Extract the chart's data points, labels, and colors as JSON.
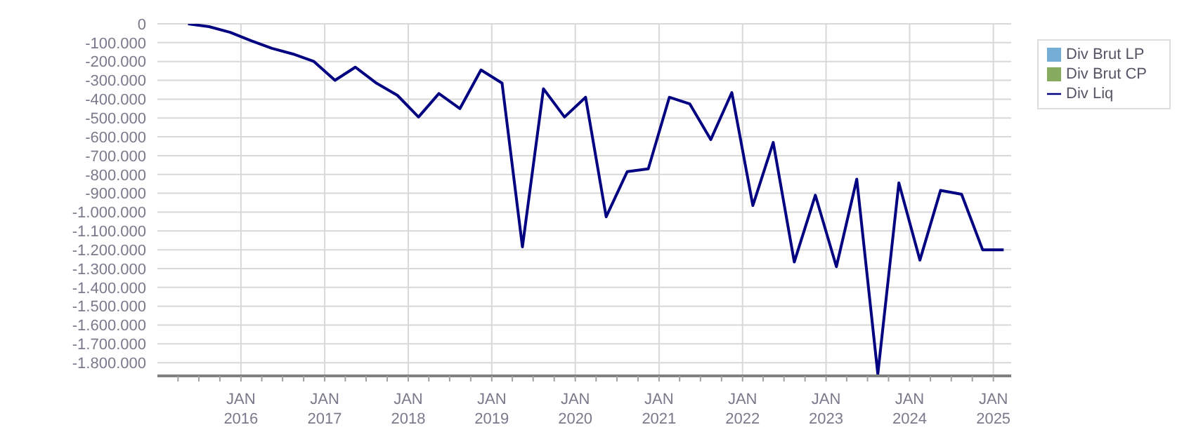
{
  "chart_data": {
    "type": "line",
    "x": [
      "2015-05-15",
      "2015-08-15",
      "2015-11-15",
      "2016-02-15",
      "2016-05-15",
      "2016-08-15",
      "2016-11-15",
      "2017-02-15",
      "2017-05-15",
      "2017-08-15",
      "2017-11-15",
      "2018-02-15",
      "2018-05-15",
      "2018-08-15",
      "2018-11-15",
      "2019-02-15",
      "2019-05-15",
      "2019-08-15",
      "2019-11-15",
      "2020-02-15",
      "2020-05-15",
      "2020-08-15",
      "2020-11-15",
      "2021-02-15",
      "2021-05-15",
      "2021-08-15",
      "2021-11-15",
      "2022-02-15",
      "2022-05-15",
      "2022-08-15",
      "2022-11-15",
      "2023-02-15",
      "2023-05-15",
      "2023-08-15",
      "2023-11-15",
      "2024-02-15",
      "2024-05-15",
      "2024-08-15",
      "2024-11-15",
      "2025-02-15"
    ],
    "series": [
      {
        "name": "Div Brut LP",
        "type": "bar",
        "color": "#74aed6",
        "values": [
          null,
          null,
          null,
          null,
          null,
          null,
          null,
          null,
          null,
          null,
          null,
          null,
          null,
          null,
          null,
          null,
          null,
          null,
          null,
          null,
          null,
          null,
          null,
          null,
          null,
          null,
          null,
          null,
          null,
          null,
          null,
          null,
          null,
          null,
          null,
          null,
          null,
          null,
          null,
          null
        ]
      },
      {
        "name": "Div Brut CP",
        "type": "bar",
        "color": "#86ab5e",
        "values": [
          null,
          null,
          null,
          null,
          null,
          null,
          null,
          null,
          null,
          null,
          null,
          null,
          null,
          null,
          null,
          null,
          null,
          null,
          null,
          null,
          null,
          null,
          null,
          null,
          null,
          null,
          null,
          null,
          null,
          null,
          null,
          null,
          null,
          null,
          null,
          null,
          null,
          null,
          null,
          null
        ]
      },
      {
        "name": "Div Liq",
        "color": "#000080",
        "values": [
          0,
          -15000,
          -45000,
          -90000,
          -130000,
          -160000,
          -200000,
          -300000,
          -230000,
          -315000,
          -380000,
          -495000,
          -370000,
          -450000,
          -245000,
          -315000,
          -1185000,
          -345000,
          -495000,
          -390000,
          -1025000,
          -785000,
          -770000,
          -390000,
          -425000,
          -615000,
          -365000,
          -965000,
          -630000,
          -1265000,
          -910000,
          -1290000,
          -825000,
          -1860000,
          -845000,
          -1255000,
          -885000,
          -905000,
          -1200000,
          -1200000
        ]
      }
    ],
    "xlim": [
      "2015-01-01",
      "2025-03-20"
    ],
    "xticks": [
      {
        "value": "2015-04-01",
        "label": null
      },
      {
        "value": "2015-07-01",
        "label": null
      },
      {
        "value": "2015-10-01",
        "label": null
      },
      {
        "value": "2016-01-01",
        "label": "JAN\n2016"
      },
      {
        "value": "2016-04-01",
        "label": null
      },
      {
        "value": "2016-07-01",
        "label": null
      },
      {
        "value": "2016-10-01",
        "label": null
      },
      {
        "value": "2017-01-01",
        "label": "JAN\n2017"
      },
      {
        "value": "2017-04-01",
        "label": null
      },
      {
        "value": "2017-07-01",
        "label": null
      },
      {
        "value": "2017-10-01",
        "label": null
      },
      {
        "value": "2018-01-01",
        "label": "JAN\n2018"
      },
      {
        "value": "2018-04-01",
        "label": null
      },
      {
        "value": "2018-07-01",
        "label": null
      },
      {
        "value": "2018-10-01",
        "label": null
      },
      {
        "value": "2019-01-01",
        "label": "JAN\n2019"
      },
      {
        "value": "2019-04-01",
        "label": null
      },
      {
        "value": "2019-07-01",
        "label": null
      },
      {
        "value": "2019-10-01",
        "label": null
      },
      {
        "value": "2020-01-01",
        "label": "JAN\n2020"
      },
      {
        "value": "2020-04-01",
        "label": null
      },
      {
        "value": "2020-07-01",
        "label": null
      },
      {
        "value": "2020-10-01",
        "label": null
      },
      {
        "value": "2021-01-01",
        "label": "JAN\n2021"
      },
      {
        "value": "2021-04-01",
        "label": null
      },
      {
        "value": "2021-07-01",
        "label": null
      },
      {
        "value": "2021-10-01",
        "label": null
      },
      {
        "value": "2022-01-01",
        "label": "JAN\n2022"
      },
      {
        "value": "2022-04-01",
        "label": null
      },
      {
        "value": "2022-07-01",
        "label": null
      },
      {
        "value": "2022-10-01",
        "label": null
      },
      {
        "value": "2023-01-01",
        "label": "JAN\n2023"
      },
      {
        "value": "2023-04-01",
        "label": null
      },
      {
        "value": "2023-07-01",
        "label": null
      },
      {
        "value": "2023-10-01",
        "label": null
      },
      {
        "value": "2024-01-01",
        "label": "JAN\n2024"
      },
      {
        "value": "2024-04-01",
        "label": null
      },
      {
        "value": "2024-07-01",
        "label": null
      },
      {
        "value": "2024-10-01",
        "label": null
      },
      {
        "value": "2025-01-01",
        "label": "JAN\n2025"
      }
    ],
    "ylim": [
      -1870000,
      0
    ],
    "yticks": [
      0,
      {
        "value": -100000,
        "label": "-100.000"
      },
      {
        "value": -200000,
        "label": "-200.000"
      },
      {
        "value": -300000,
        "label": "-300.000"
      },
      {
        "value": -400000,
        "label": "-400.000"
      },
      {
        "value": -500000,
        "label": "-500.000"
      },
      {
        "value": -600000,
        "label": "-600.000"
      },
      {
        "value": -700000,
        "label": "-700.000"
      },
      {
        "value": -800000,
        "label": "-800.000"
      },
      {
        "value": -900000,
        "label": "-900.000"
      },
      {
        "value": -1000000,
        "label": "-1.000.000"
      },
      {
        "value": -1100000,
        "label": "-1.100.000"
      },
      {
        "value": -1200000,
        "label": "-1.200.000"
      },
      {
        "value": -1300000,
        "label": "-1.300.000"
      },
      {
        "value": -1400000,
        "label": "-1.400.000"
      },
      {
        "value": -1500000,
        "label": "-1.500.000"
      },
      {
        "value": -1600000,
        "label": "-1.600.000"
      },
      {
        "value": -1700000,
        "label": "-1.700.000"
      },
      {
        "value": -1800000,
        "label": "-1.800.000"
      }
    ],
    "grid": true,
    "legend": "top right",
    "marker": "none",
    "line_style": "solid"
  }
}
